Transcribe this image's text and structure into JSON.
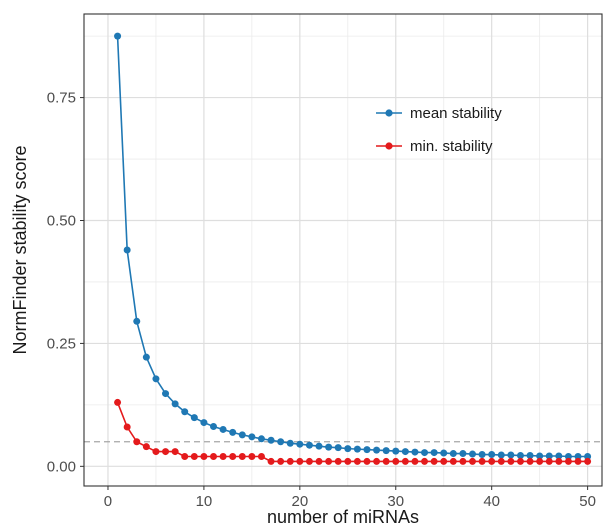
{
  "chart_data": {
    "type": "line",
    "xlabel": "number of miRNAs",
    "ylabel": "NormFinder stability score",
    "xlim": [
      -2.5,
      51.5
    ],
    "ylim": [
      -0.04,
      0.92
    ],
    "x_ticks": [
      0,
      10,
      20,
      30,
      40,
      50
    ],
    "x_tick_labels": [
      "0",
      "10",
      "20",
      "30",
      "40",
      "50"
    ],
    "y_ticks": [
      0,
      0.25,
      0.5,
      0.75
    ],
    "y_tick_labels": [
      "0.00",
      "0.25",
      "0.50",
      "0.75"
    ],
    "grid": true,
    "legend_position": "top-right",
    "reference_line": {
      "y": 0.05,
      "style": "dashed",
      "color": "#a6a6a6"
    },
    "x": [
      1,
      2,
      3,
      4,
      5,
      6,
      7,
      8,
      9,
      10,
      11,
      12,
      13,
      14,
      15,
      16,
      17,
      18,
      19,
      20,
      21,
      22,
      23,
      24,
      25,
      26,
      27,
      28,
      29,
      30,
      31,
      32,
      33,
      34,
      35,
      36,
      37,
      38,
      39,
      40,
      41,
      42,
      43,
      44,
      45,
      46,
      47,
      48,
      49,
      50
    ],
    "series": [
      {
        "name": "mean stability",
        "color": "#1f78b4",
        "values": [
          0.875,
          0.44,
          0.295,
          0.222,
          0.178,
          0.148,
          0.127,
          0.111,
          0.099,
          0.089,
          0.081,
          0.075,
          0.069,
          0.064,
          0.06,
          0.056,
          0.053,
          0.05,
          0.047,
          0.045,
          0.043,
          0.041,
          0.039,
          0.038,
          0.036,
          0.035,
          0.034,
          0.033,
          0.032,
          0.031,
          0.03,
          0.029,
          0.028,
          0.028,
          0.027,
          0.026,
          0.026,
          0.025,
          0.024,
          0.024,
          0.023,
          0.023,
          0.022,
          0.022,
          0.021,
          0.021,
          0.021,
          0.02,
          0.02,
          0.02
        ]
      },
      {
        "name": "min. stability",
        "color": "#e41a1c",
        "values": [
          0.13,
          0.08,
          0.05,
          0.04,
          0.03,
          0.03,
          0.03,
          0.02,
          0.02,
          0.02,
          0.02,
          0.02,
          0.02,
          0.02,
          0.02,
          0.02,
          0.01,
          0.01,
          0.01,
          0.01,
          0.01,
          0.01,
          0.01,
          0.01,
          0.01,
          0.01,
          0.01,
          0.01,
          0.01,
          0.01,
          0.01,
          0.01,
          0.01,
          0.01,
          0.01,
          0.01,
          0.01,
          0.01,
          0.01,
          0.01,
          0.01,
          0.01,
          0.01,
          0.01,
          0.01,
          0.01,
          0.01,
          0.01,
          0.01,
          0.01
        ]
      }
    ]
  }
}
